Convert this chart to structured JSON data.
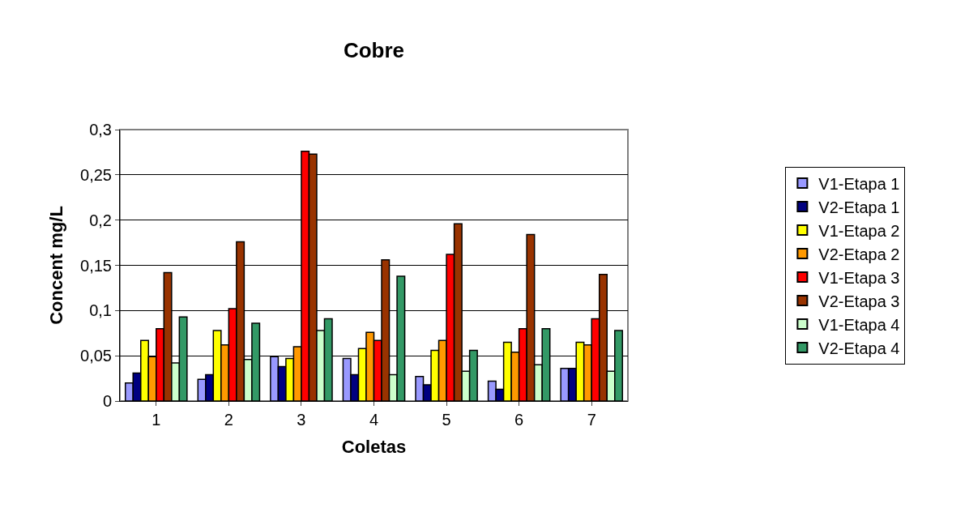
{
  "chart_data": {
    "type": "bar",
    "title": "Cobre",
    "xlabel": "Coletas",
    "ylabel": "Concent mg/L",
    "categories": [
      "1",
      "2",
      "3",
      "4",
      "5",
      "6",
      "7"
    ],
    "series": [
      {
        "name": "V1-Etapa 1",
        "color": "#9999ff",
        "values": [
          0.02,
          0.024,
          0.049,
          0.047,
          0.027,
          0.022,
          0.036
        ]
      },
      {
        "name": "V2-Etapa 1",
        "color": "#000080",
        "values": [
          0.031,
          0.029,
          0.038,
          0.029,
          0.018,
          0.013,
          0.036
        ]
      },
      {
        "name": "V1-Etapa 2",
        "color": "#ffff00",
        "values": [
          0.067,
          0.078,
          0.047,
          0.058,
          0.056,
          0.065,
          0.065
        ]
      },
      {
        "name": "V2-Etapa 2",
        "color": "#ff9900",
        "values": [
          0.049,
          0.062,
          0.06,
          0.076,
          0.067,
          0.054,
          0.062
        ]
      },
      {
        "name": "V1-Etapa 3",
        "color": "#ff0000",
        "values": [
          0.08,
          0.102,
          0.276,
          0.067,
          0.162,
          0.08,
          0.091
        ]
      },
      {
        "name": "V2-Etapa 3",
        "color": "#993300",
        "values": [
          0.142,
          0.176,
          0.273,
          0.156,
          0.196,
          0.184,
          0.14
        ]
      },
      {
        "name": "V1-Etapa 4",
        "color": "#ccffcc",
        "values": [
          0.042,
          0.046,
          0.078,
          0.029,
          0.033,
          0.04,
          0.033
        ]
      },
      {
        "name": "V2-Etapa 4",
        "color": "#339966",
        "values": [
          0.093,
          0.086,
          0.091,
          0.138,
          0.056,
          0.08,
          0.078
        ]
      }
    ],
    "ylim": [
      0,
      0.3
    ],
    "yticks": [
      0,
      {
        "value": 0.05,
        "label": "0,05"
      },
      {
        "value": 0.1,
        "label": "0,1"
      },
      {
        "value": 0.15,
        "label": "0,15"
      },
      {
        "value": 0.2,
        "label": "0,2"
      },
      {
        "value": 0.25,
        "label": "0,25"
      },
      {
        "value": 0.3,
        "label": "0,3"
      }
    ],
    "grid": "y",
    "legend": "right"
  }
}
